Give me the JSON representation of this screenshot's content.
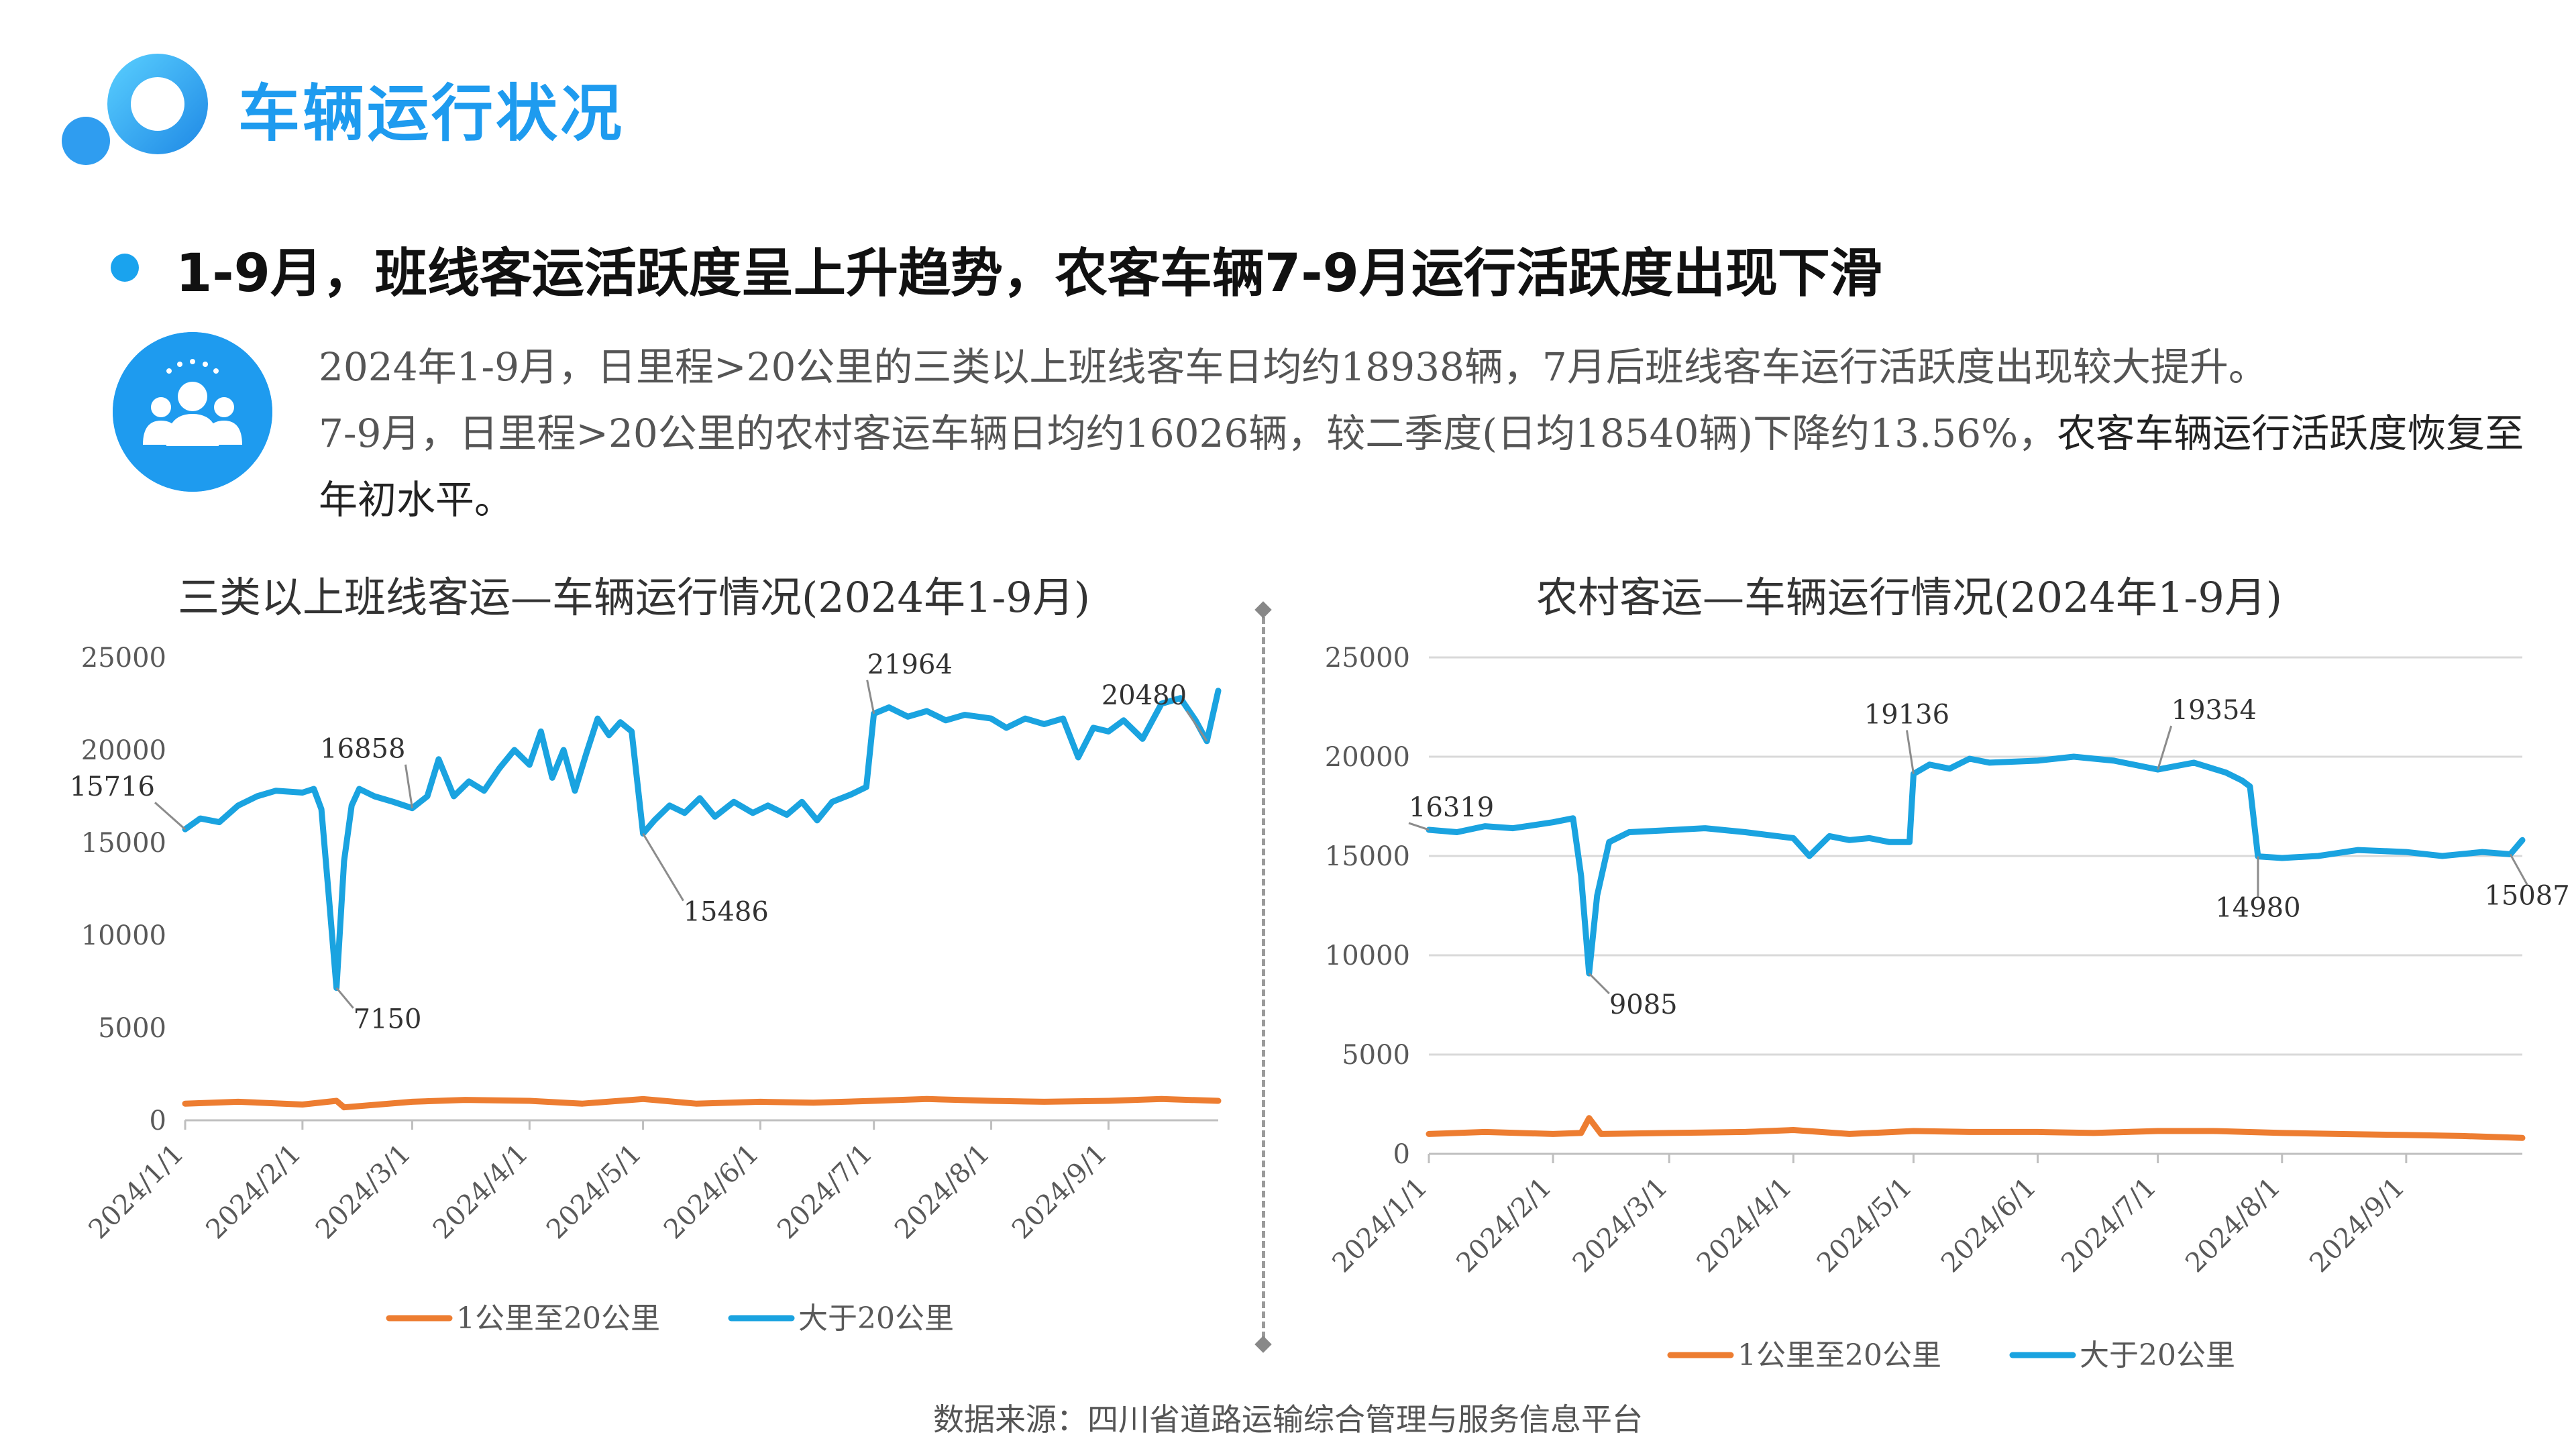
{
  "header": {
    "title": "车辆运行状况"
  },
  "headline": "1-9月，班线客运活跃度呈上升趋势，农客车辆7-9月运行活跃度出现下滑",
  "summary": {
    "line1": "2024年1-9月，日里程>20公里的三类以上班线客车日均约18938辆，7月后班线客车运行活跃度出现较大提升。",
    "line2a": "7-9月，日里程>20公里的农村客运车辆日均约16026辆，较二季度(日均18540辆)下降约13.56%，",
    "line2b": "农客车辆运行活跃度恢复至年初水平。"
  },
  "source": "数据来源：四川省道路运输综合管理与服务信息平台",
  "colors": {
    "accent": "#1e9bef",
    "series_short": "#ed7d31",
    "series_long": "#1aa3e0"
  },
  "chart_data": [
    {
      "type": "line",
      "title": "三类以上班线客运—车辆运行情况(2024年1-9月)",
      "x_range": [
        "2024/1/1",
        "2024/9/30"
      ],
      "x_ticks": [
        "2024/1/1",
        "2024/2/1",
        "2024/3/1",
        "2024/4/1",
        "2024/5/1",
        "2024/6/1",
        "2024/7/1",
        "2024/8/1",
        "2024/9/1"
      ],
      "ylim": [
        0,
        25000
      ],
      "y_ticks": [
        "0",
        "5000",
        "10000",
        "15000",
        "20000",
        "25000"
      ],
      "grid": false,
      "legend": "bottom",
      "series": [
        {
          "name": "1公里至20公里",
          "points": [
            [
              "2024/1/1",
              900
            ],
            [
              "2024/1/15",
              1000
            ],
            [
              "2024/2/1",
              850
            ],
            [
              "2024/2/10",
              1050
            ],
            [
              "2024/2/12",
              700
            ],
            [
              "2024/3/1",
              1000
            ],
            [
              "2024/3/15",
              1100
            ],
            [
              "2024/4/1",
              1050
            ],
            [
              "2024/4/15",
              900
            ],
            [
              "2024/5/1",
              1150
            ],
            [
              "2024/5/15",
              900
            ],
            [
              "2024/6/1",
              1000
            ],
            [
              "2024/6/15",
              950
            ],
            [
              "2024/7/1",
              1050
            ],
            [
              "2024/7/15",
              1150
            ],
            [
              "2024/8/1",
              1050
            ],
            [
              "2024/8/15",
              1000
            ],
            [
              "2024/9/1",
              1050
            ],
            [
              "2024/9/15",
              1150
            ],
            [
              "2024/9/30",
              1050
            ]
          ]
        },
        {
          "name": "大于20公里",
          "points": [
            [
              "2024/1/1",
              15716
            ],
            [
              "2024/1/5",
              16300
            ],
            [
              "2024/1/10",
              16100
            ],
            [
              "2024/1/15",
              17000
            ],
            [
              "2024/1/20",
              17500
            ],
            [
              "2024/1/25",
              17800
            ],
            [
              "2024/2/1",
              17700
            ],
            [
              "2024/2/4",
              17900
            ],
            [
              "2024/2/6",
              16800
            ],
            [
              "2024/2/8",
              12000
            ],
            [
              "2024/2/10",
              7150
            ],
            [
              "2024/2/12",
              14000
            ],
            [
              "2024/2/14",
              17000
            ],
            [
              "2024/2/16",
              17900
            ],
            [
              "2024/2/20",
              17500
            ],
            [
              "2024/2/25",
              17200
            ],
            [
              "2024/3/1",
              16858
            ],
            [
              "2024/3/5",
              17500
            ],
            [
              "2024/3/8",
              19500
            ],
            [
              "2024/3/12",
              17500
            ],
            [
              "2024/3/16",
              18300
            ],
            [
              "2024/3/20",
              17800
            ],
            [
              "2024/3/24",
              19000
            ],
            [
              "2024/3/28",
              20000
            ],
            [
              "2024/4/1",
              19200
            ],
            [
              "2024/4/4",
              21000
            ],
            [
              "2024/4/7",
              18500
            ],
            [
              "2024/4/10",
              20000
            ],
            [
              "2024/4/13",
              17800
            ],
            [
              "2024/4/16",
              19800
            ],
            [
              "2024/4/19",
              21700
            ],
            [
              "2024/4/22",
              20800
            ],
            [
              "2024/4/25",
              21500
            ],
            [
              "2024/4/28",
              21000
            ],
            [
              "2024/5/1",
              15486
            ],
            [
              "2024/5/4",
              16200
            ],
            [
              "2024/5/8",
              17000
            ],
            [
              "2024/5/12",
              16600
            ],
            [
              "2024/5/16",
              17400
            ],
            [
              "2024/5/20",
              16400
            ],
            [
              "2024/5/25",
              17200
            ],
            [
              "2024/5/30",
              16600
            ],
            [
              "2024/6/3",
              17000
            ],
            [
              "2024/6/8",
              16500
            ],
            [
              "2024/6/12",
              17200
            ],
            [
              "2024/6/16",
              16200
            ],
            [
              "2024/6/20",
              17200
            ],
            [
              "2024/6/25",
              17600
            ],
            [
              "2024/6/29",
              18000
            ],
            [
              "2024/7/1",
              21964
            ],
            [
              "2024/7/5",
              22300
            ],
            [
              "2024/7/10",
              21800
            ],
            [
              "2024/7/15",
              22100
            ],
            [
              "2024/7/20",
              21600
            ],
            [
              "2024/7/25",
              21900
            ],
            [
              "2024/8/1",
              21700
            ],
            [
              "2024/8/5",
              21200
            ],
            [
              "2024/8/10",
              21700
            ],
            [
              "2024/8/15",
              21400
            ],
            [
              "2024/8/20",
              21700
            ],
            [
              "2024/8/24",
              19600
            ],
            [
              "2024/8/28",
              21200
            ],
            [
              "2024/9/1",
              21000
            ],
            [
              "2024/9/5",
              21600
            ],
            [
              "2024/9/10",
              20600
            ],
            [
              "2024/9/15",
              22500
            ],
            [
              "2024/9/20",
              22800
            ],
            [
              "2024/9/24",
              21600
            ],
            [
              "2024/9/27",
              20480
            ],
            [
              "2024/9/30",
              23200
            ]
          ]
        }
      ],
      "annotations": [
        {
          "text": "15716",
          "x": "2024/1/1",
          "y": 15716
        },
        {
          "text": "16858",
          "x": "2024/3/1",
          "y": 16858
        },
        {
          "text": "7150",
          "x": "2024/2/10",
          "y": 7150
        },
        {
          "text": "15486",
          "x": "2024/5/1",
          "y": 15486
        },
        {
          "text": "21964",
          "x": "2024/7/1",
          "y": 21964
        },
        {
          "text": "20480",
          "x": "2024/9/27",
          "y": 20480
        }
      ]
    },
    {
      "type": "line",
      "title": "农村客运—车辆运行情况(2024年1-9月)",
      "x_range": [
        "2024/1/1",
        "2024/9/30"
      ],
      "x_ticks": [
        "2024/1/1",
        "2024/2/1",
        "2024/3/1",
        "2024/4/1",
        "2024/5/1",
        "2024/6/1",
        "2024/7/1",
        "2024/8/1",
        "2024/9/1"
      ],
      "ylim": [
        0,
        25000
      ],
      "y_ticks": [
        "0",
        "5000",
        "10000",
        "15000",
        "20000",
        "25000"
      ],
      "grid": true,
      "legend": "bottom",
      "series": [
        {
          "name": "1公里至20公里",
          "points": [
            [
              "2024/1/1",
              1000
            ],
            [
              "2024/1/15",
              1100
            ],
            [
              "2024/2/1",
              1000
            ],
            [
              "2024/2/8",
              1050
            ],
            [
              "2024/2/10",
              1800
            ],
            [
              "2024/2/13",
              1000
            ],
            [
              "2024/3/1",
              1050
            ],
            [
              "2024/3/20",
              1100
            ],
            [
              "2024/4/1",
              1200
            ],
            [
              "2024/4/15",
              1000
            ],
            [
              "2024/5/1",
              1150
            ],
            [
              "2024/5/15",
              1100
            ],
            [
              "2024/6/1",
              1100
            ],
            [
              "2024/6/15",
              1050
            ],
            [
              "2024/7/1",
              1150
            ],
            [
              "2024/7/15",
              1150
            ],
            [
              "2024/8/1",
              1050
            ],
            [
              "2024/8/15",
              1000
            ],
            [
              "2024/9/1",
              950
            ],
            [
              "2024/9/15",
              900
            ],
            [
              "2024/9/30",
              800
            ]
          ]
        },
        {
          "name": "大于20公里",
          "points": [
            [
              "2024/1/1",
              16319
            ],
            [
              "2024/1/8",
              16200
            ],
            [
              "2024/1/15",
              16500
            ],
            [
              "2024/1/22",
              16400
            ],
            [
              "2024/2/1",
              16700
            ],
            [
              "2024/2/6",
              16900
            ],
            [
              "2024/2/8",
              14000
            ],
            [
              "2024/2/10",
              9085
            ],
            [
              "2024/2/12",
              13000
            ],
            [
              "2024/2/15",
              15700
            ],
            [
              "2024/2/20",
              16200
            ],
            [
              "2024/3/1",
              16300
            ],
            [
              "2024/3/10",
              16400
            ],
            [
              "2024/3/20",
              16200
            ],
            [
              "2024/4/1",
              15900
            ],
            [
              "2024/4/5",
              15000
            ],
            [
              "2024/4/10",
              16000
            ],
            [
              "2024/4/15",
              15800
            ],
            [
              "2024/4/20",
              15900
            ],
            [
              "2024/4/25",
              15700
            ],
            [
              "2024/4/30",
              15700
            ],
            [
              "2024/5/1",
              19136
            ],
            [
              "2024/5/5",
              19600
            ],
            [
              "2024/5/10",
              19400
            ],
            [
              "2024/5/15",
              19900
            ],
            [
              "2024/5/20",
              19700
            ],
            [
              "2024/6/1",
              19800
            ],
            [
              "2024/6/10",
              20000
            ],
            [
              "2024/6/20",
              19800
            ],
            [
              "2024/7/1",
              19354
            ],
            [
              "2024/7/10",
              19700
            ],
            [
              "2024/7/18",
              19200
            ],
            [
              "2024/7/22",
              18800
            ],
            [
              "2024/7/24",
              18500
            ],
            [
              "2024/7/26",
              14980
            ],
            [
              "2024/8/1",
              14900
            ],
            [
              "2024/8/10",
              15000
            ],
            [
              "2024/8/20",
              15300
            ],
            [
              "2024/9/1",
              15200
            ],
            [
              "2024/9/10",
              15000
            ],
            [
              "2024/9/20",
              15200
            ],
            [
              "2024/9/27",
              15087
            ],
            [
              "2024/9/30",
              15800
            ]
          ]
        }
      ],
      "annotations": [
        {
          "text": "16319",
          "x": "2024/1/1",
          "y": 16319
        },
        {
          "text": "9085",
          "x": "2024/2/10",
          "y": 9085
        },
        {
          "text": "19136",
          "x": "2024/5/1",
          "y": 19136
        },
        {
          "text": "19354",
          "x": "2024/7/1",
          "y": 19354
        },
        {
          "text": "14980",
          "x": "2024/7/26",
          "y": 14980
        },
        {
          "text": "15087",
          "x": "2024/9/27",
          "y": 15087
        }
      ]
    }
  ]
}
